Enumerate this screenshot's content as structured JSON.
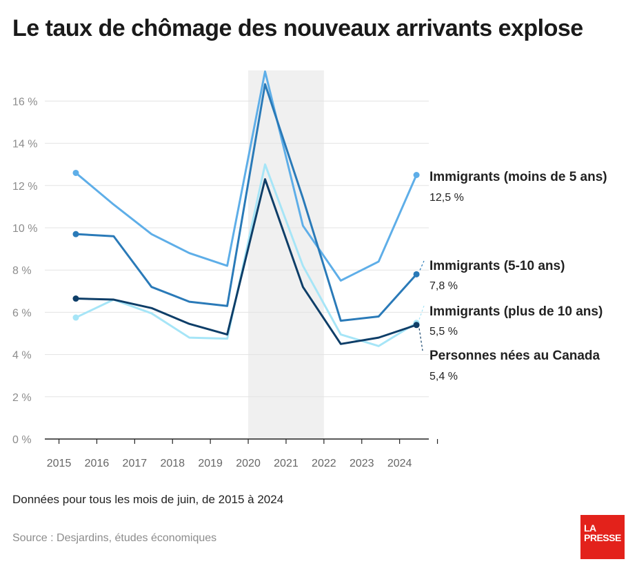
{
  "title": "Le taux de chômage des nouveaux arrivants explose",
  "note": "Données pour tous les mois de juin, de 2015 à 2024",
  "source": "Source : Desjardins, études économiques",
  "logo": {
    "line1": "LA",
    "line2": "PRESSE"
  },
  "chart_data": {
    "type": "line",
    "x": [
      "2015",
      "2016",
      "2017",
      "2018",
      "2019",
      "2020",
      "2021",
      "2022",
      "2023",
      "2024"
    ],
    "ylim": [
      0,
      17.5
    ],
    "yticks": [
      0,
      2,
      4,
      6,
      8,
      10,
      12,
      14,
      16
    ],
    "ytick_labels": [
      "0 %",
      "2 %",
      "4 %",
      "6 %",
      "8 %",
      "10 %",
      "12 %",
      "14 %",
      "16 %"
    ],
    "grid": true,
    "highlight_band": [
      "2020",
      "2022"
    ],
    "series": [
      {
        "name": "Immigrants (moins de 5 ans)",
        "label": "12,5 %",
        "color": "#5eaee8",
        "values": [
          12.6,
          11.1,
          9.7,
          8.8,
          8.2,
          17.4,
          10.1,
          7.5,
          8.4,
          12.5
        ]
      },
      {
        "name": "Immigrants (5-10 ans)",
        "label": "7,8 %",
        "color": "#2a7ab8",
        "values": [
          9.7,
          9.6,
          7.2,
          6.5,
          6.3,
          16.8,
          11.4,
          5.6,
          5.8,
          7.8
        ]
      },
      {
        "name": "Immigrants (plus de 10 ans)",
        "label": "5,5 %",
        "color": "#a6e5f7",
        "values": [
          5.75,
          6.6,
          5.95,
          4.8,
          4.75,
          13.0,
          8.2,
          4.95,
          4.4,
          5.5
        ]
      },
      {
        "name": "Personnes nées au Canada",
        "label": "5,4 %",
        "color": "#0e3e68",
        "values": [
          6.65,
          6.6,
          6.2,
          5.45,
          4.95,
          12.3,
          7.2,
          4.5,
          4.8,
          5.4
        ]
      }
    ]
  }
}
